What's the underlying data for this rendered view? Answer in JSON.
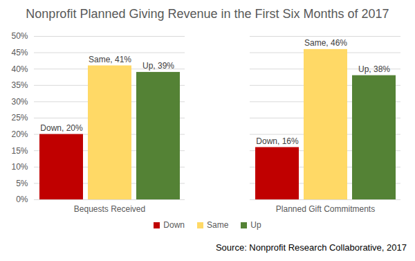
{
  "chart_data": {
    "type": "bar",
    "title": "Nonprofit Planned Giving Revenue in the First Six Months of 2017",
    "categories": [
      "Bequests Received",
      "Planned Gift Commitments"
    ],
    "series": [
      {
        "name": "Down",
        "color": "#c00000",
        "values": [
          20,
          16
        ],
        "value_labels": [
          "Down, 20%",
          "Down, 16%"
        ]
      },
      {
        "name": "Same",
        "color": "#ffd966",
        "values": [
          41,
          46
        ],
        "value_labels": [
          "Same, 41%",
          "Same, 46%"
        ]
      },
      {
        "name": "Up",
        "color": "#548235",
        "values": [
          39,
          38
        ],
        "value_labels": [
          "Up, 39%",
          "Up, 38%"
        ]
      }
    ],
    "ylim": [
      0,
      50
    ],
    "yticks": [
      {
        "value": 0,
        "label": "0%"
      },
      {
        "value": 5,
        "label": "5%"
      },
      {
        "value": 10,
        "label": "10%"
      },
      {
        "value": 15,
        "label": "15%"
      },
      {
        "value": 20,
        "label": "20%"
      },
      {
        "value": 25,
        "label": "25%"
      },
      {
        "value": 30,
        "label": "30%"
      },
      {
        "value": 35,
        "label": "35%"
      },
      {
        "value": 40,
        "label": "40%"
      },
      {
        "value": 45,
        "label": "45%"
      },
      {
        "value": 50,
        "label": "50%"
      }
    ],
    "grid": true,
    "data_labels": true,
    "legend": "bottom",
    "annotations": [
      "Source: Nonprofit Research Collaborative, 2017"
    ]
  }
}
